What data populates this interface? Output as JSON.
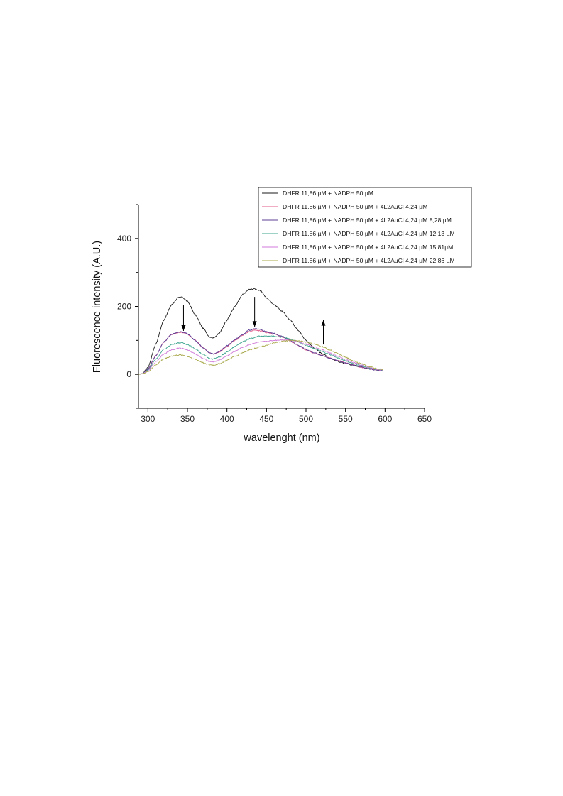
{
  "chart_data": {
    "type": "line",
    "title": "",
    "xlabel": "wavelenght (nm)",
    "ylabel": "Fluorescence intensity (A.U.)",
    "xlim": [
      288,
      650
    ],
    "ylim": [
      -100,
      500
    ],
    "xticks": [
      300,
      350,
      400,
      450,
      500,
      550,
      600,
      650
    ],
    "yticks": [
      0,
      200,
      400
    ],
    "grid": false,
    "legend_position": "top-right",
    "series": [
      {
        "name": "DHFR 11,86 µM + NADPH 50 µM",
        "color": "#1a1a1a",
        "points": [
          [
            288,
            0
          ],
          [
            293,
            2
          ],
          [
            300,
            20
          ],
          [
            310,
            90
          ],
          [
            320,
            160
          ],
          [
            330,
            205
          ],
          [
            338,
            225
          ],
          [
            343,
            228
          ],
          [
            350,
            215
          ],
          [
            360,
            175
          ],
          [
            370,
            135
          ],
          [
            378,
            110
          ],
          [
            383,
            108
          ],
          [
            390,
            120
          ],
          [
            400,
            160
          ],
          [
            410,
            200
          ],
          [
            420,
            235
          ],
          [
            428,
            250
          ],
          [
            435,
            252
          ],
          [
            443,
            245
          ],
          [
            450,
            225
          ],
          [
            460,
            205
          ],
          [
            470,
            185
          ],
          [
            480,
            160
          ],
          [
            490,
            130
          ],
          [
            500,
            100
          ],
          [
            510,
            78
          ],
          [
            520,
            62
          ],
          [
            530,
            48
          ],
          [
            540,
            38
          ],
          [
            550,
            32
          ],
          [
            560,
            27
          ],
          [
            570,
            22
          ],
          [
            580,
            18
          ],
          [
            590,
            13
          ],
          [
            598,
            10
          ]
        ]
      },
      {
        "name": "DHFR 11,86 µM + NADPH 50 µM + 4L2AuCl 4,24 µM",
        "color": "#e05a8a",
        "points": [
          [
            288,
            0
          ],
          [
            293,
            2
          ],
          [
            300,
            15
          ],
          [
            310,
            55
          ],
          [
            320,
            95
          ],
          [
            330,
            118
          ],
          [
            340,
            124
          ],
          [
            345,
            123
          ],
          [
            350,
            118
          ],
          [
            360,
            100
          ],
          [
            370,
            78
          ],
          [
            378,
            63
          ],
          [
            383,
            60
          ],
          [
            390,
            66
          ],
          [
            400,
            82
          ],
          [
            410,
            100
          ],
          [
            420,
            115
          ],
          [
            428,
            126
          ],
          [
            435,
            130
          ],
          [
            443,
            128
          ],
          [
            450,
            123
          ],
          [
            460,
            118
          ],
          [
            470,
            110
          ],
          [
            480,
            98
          ],
          [
            490,
            85
          ],
          [
            500,
            72
          ],
          [
            510,
            63
          ],
          [
            520,
            56
          ],
          [
            530,
            48
          ],
          [
            540,
            41
          ],
          [
            550,
            34
          ],
          [
            560,
            27
          ],
          [
            570,
            21
          ],
          [
            580,
            16
          ],
          [
            590,
            12
          ],
          [
            598,
            10
          ]
        ]
      },
      {
        "name": "DHFR 11,86 µM + NADPH 50 µM + 4L2AuCl 4,24 µM 8,28 µM",
        "color": "#5b3e96",
        "points": [
          [
            288,
            0
          ],
          [
            293,
            2
          ],
          [
            300,
            15
          ],
          [
            310,
            55
          ],
          [
            320,
            95
          ],
          [
            330,
            118
          ],
          [
            340,
            125
          ],
          [
            345,
            124
          ],
          [
            350,
            119
          ],
          [
            360,
            100
          ],
          [
            370,
            78
          ],
          [
            378,
            63
          ],
          [
            383,
            60
          ],
          [
            390,
            67
          ],
          [
            400,
            84
          ],
          [
            410,
            102
          ],
          [
            420,
            118
          ],
          [
            428,
            130
          ],
          [
            435,
            134
          ],
          [
            443,
            131
          ],
          [
            450,
            125
          ],
          [
            460,
            120
          ],
          [
            470,
            112
          ],
          [
            480,
            100
          ],
          [
            490,
            86
          ],
          [
            500,
            73
          ],
          [
            510,
            64
          ],
          [
            520,
            56
          ],
          [
            530,
            48
          ],
          [
            540,
            40
          ],
          [
            550,
            33
          ],
          [
            560,
            27
          ],
          [
            570,
            21
          ],
          [
            580,
            16
          ],
          [
            590,
            12
          ],
          [
            598,
            10
          ]
        ]
      },
      {
        "name": "DHFR 11,86 µM + NADPH 50 µM + 4L2AuCl 4,24 µM 12,13 µM",
        "color": "#3fa58f",
        "points": [
          [
            288,
            0
          ],
          [
            293,
            2
          ],
          [
            300,
            12
          ],
          [
            310,
            45
          ],
          [
            320,
            73
          ],
          [
            330,
            88
          ],
          [
            340,
            93
          ],
          [
            345,
            92
          ],
          [
            350,
            88
          ],
          [
            360,
            75
          ],
          [
            370,
            58
          ],
          [
            378,
            47
          ],
          [
            383,
            45
          ],
          [
            390,
            51
          ],
          [
            400,
            65
          ],
          [
            410,
            82
          ],
          [
            420,
            96
          ],
          [
            430,
            106
          ],
          [
            440,
            112
          ],
          [
            450,
            112
          ],
          [
            460,
            112
          ],
          [
            470,
            110
          ],
          [
            480,
            104
          ],
          [
            490,
            96
          ],
          [
            500,
            86
          ],
          [
            510,
            76
          ],
          [
            520,
            68
          ],
          [
            530,
            58
          ],
          [
            540,
            49
          ],
          [
            550,
            40
          ],
          [
            560,
            32
          ],
          [
            570,
            25
          ],
          [
            580,
            19
          ],
          [
            590,
            14
          ],
          [
            598,
            11
          ]
        ]
      },
      {
        "name": "DHFR 11,86 µM + NADPH 50 µM + 4L2AuCl 4,24 µM 15,81µM",
        "color": "#d07ad8",
        "points": [
          [
            288,
            0
          ],
          [
            293,
            2
          ],
          [
            300,
            10
          ],
          [
            310,
            37
          ],
          [
            320,
            60
          ],
          [
            330,
            72
          ],
          [
            340,
            77
          ],
          [
            345,
            76
          ],
          [
            350,
            72
          ],
          [
            360,
            60
          ],
          [
            370,
            46
          ],
          [
            378,
            38
          ],
          [
            383,
            37
          ],
          [
            390,
            42
          ],
          [
            400,
            54
          ],
          [
            410,
            68
          ],
          [
            420,
            80
          ],
          [
            430,
            89
          ],
          [
            440,
            94
          ],
          [
            450,
            97
          ],
          [
            460,
            100
          ],
          [
            470,
            102
          ],
          [
            480,
            101
          ],
          [
            490,
            96
          ],
          [
            500,
            89
          ],
          [
            510,
            81
          ],
          [
            520,
            73
          ],
          [
            530,
            63
          ],
          [
            540,
            53
          ],
          [
            550,
            44
          ],
          [
            560,
            35
          ],
          [
            570,
            27
          ],
          [
            580,
            20
          ],
          [
            590,
            15
          ],
          [
            598,
            12
          ]
        ]
      },
      {
        "name": "DHFR 11,86 µM + NADPH 50 µM + 4L2AuCl 4,24 µM 22,86 µM",
        "color": "#a8a84a",
        "points": [
          [
            288,
            0
          ],
          [
            293,
            2
          ],
          [
            300,
            8
          ],
          [
            310,
            28
          ],
          [
            320,
            45
          ],
          [
            330,
            54
          ],
          [
            340,
            57
          ],
          [
            345,
            56
          ],
          [
            350,
            53
          ],
          [
            360,
            44
          ],
          [
            370,
            34
          ],
          [
            378,
            28
          ],
          [
            383,
            27
          ],
          [
            390,
            31
          ],
          [
            400,
            41
          ],
          [
            410,
            53
          ],
          [
            420,
            64
          ],
          [
            430,
            73
          ],
          [
            440,
            80
          ],
          [
            450,
            86
          ],
          [
            460,
            92
          ],
          [
            470,
            97
          ],
          [
            480,
            100
          ],
          [
            490,
            99
          ],
          [
            500,
            95
          ],
          [
            510,
            89
          ],
          [
            520,
            82
          ],
          [
            530,
            72
          ],
          [
            540,
            61
          ],
          [
            550,
            50
          ],
          [
            560,
            40
          ],
          [
            570,
            31
          ],
          [
            580,
            23
          ],
          [
            590,
            17
          ],
          [
            598,
            13
          ]
        ]
      }
    ],
    "annotations": [
      {
        "type": "arrow-down",
        "x": 345,
        "y_from": 205,
        "y_to": 128
      },
      {
        "type": "arrow-down",
        "x": 435,
        "y_from": 228,
        "y_to": 140
      },
      {
        "type": "arrow-up",
        "x": 522,
        "y_from": 88,
        "y_to": 160
      }
    ]
  }
}
